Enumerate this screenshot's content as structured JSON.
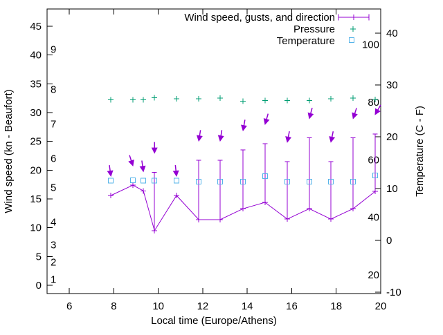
{
  "chart_data": {
    "type": "line",
    "title": "",
    "legend": {
      "position": "top-right-inside",
      "entries": [
        {
          "label": "Wind speed, gusts, and direction",
          "color": "#9400d3",
          "marker": "errorbar-line-plus"
        },
        {
          "label": "Pressure",
          "color": "#009e73",
          "marker": "plus"
        },
        {
          "label": "Temperature",
          "color": "#56b4e9",
          "marker": "open-square"
        }
      ]
    },
    "x_axis": {
      "label": "Local time (Europe/Athens)",
      "range": [
        5,
        20
      ],
      "ticks": [
        6,
        8,
        10,
        12,
        14,
        16,
        18,
        20
      ],
      "grid": false
    },
    "y_axis_left": {
      "label": "Wind speed (kn - Beaufort)",
      "units": "kn",
      "range_kn": [
        -1.44,
        48.0
      ],
      "ticks_kn": [
        0,
        5,
        10,
        15,
        20,
        25,
        30,
        35,
        40,
        45
      ],
      "beaufort_inner_labels": [
        [
          1,
          1
        ],
        [
          2,
          4
        ],
        [
          3,
          7
        ],
        [
          4,
          11
        ],
        [
          5,
          17
        ],
        [
          6,
          22
        ],
        [
          7,
          28
        ],
        [
          8,
          34
        ],
        [
          9,
          41
        ]
      ]
    },
    "y_axis_right": {
      "label": "Temperature (C - F)",
      "units": "C",
      "range_c": [
        -10.27,
        44.66
      ],
      "ticks_c": [
        -10,
        0,
        10,
        20,
        30,
        40
      ],
      "fahrenheit_inner_labels": [
        20,
        40,
        60,
        80,
        100
      ]
    },
    "x_hours": [
      7.87,
      8.86,
      9.33,
      9.83,
      10.82,
      11.82,
      12.78,
      13.81,
      14.8,
      15.8,
      16.79,
      17.76,
      18.76,
      19.75
    ],
    "series": {
      "wind_kn": [
        15.6,
        17.4,
        16.4,
        9.5,
        15.6,
        11.4,
        11.4,
        13.3,
        14.4,
        11.5,
        13.3,
        11.5,
        13.3,
        16.3
      ],
      "gust_kn": [
        null,
        null,
        null,
        19.6,
        null,
        21.7,
        21.7,
        23.5,
        24.6,
        21.5,
        25.6,
        21.5,
        25.6,
        26.3
      ],
      "wind_direction_deg_from_down": [
        -8,
        -18,
        -8,
        0,
        -6,
        9,
        9,
        10,
        16,
        11,
        15,
        12,
        18,
        30
      ],
      "pressure_level_kn_equiv": [
        32.2,
        32.2,
        32.2,
        32.6,
        32.4,
        32.4,
        32.5,
        32.0,
        32.1,
        32.1,
        32.1,
        32.4,
        32.5,
        32.3
      ],
      "pressure_axis": "hidden",
      "temperature_c": [
        11.5,
        11.6,
        11.5,
        11.5,
        11.5,
        11.3,
        11.3,
        11.3,
        12.4,
        11.3,
        11.3,
        11.3,
        11.3,
        12.5
      ]
    },
    "colors": {
      "wind": "#9400d3",
      "pressure": "#009e73",
      "temperature": "#56b4e9",
      "axis": "#000000",
      "background": "#ffffff"
    }
  }
}
